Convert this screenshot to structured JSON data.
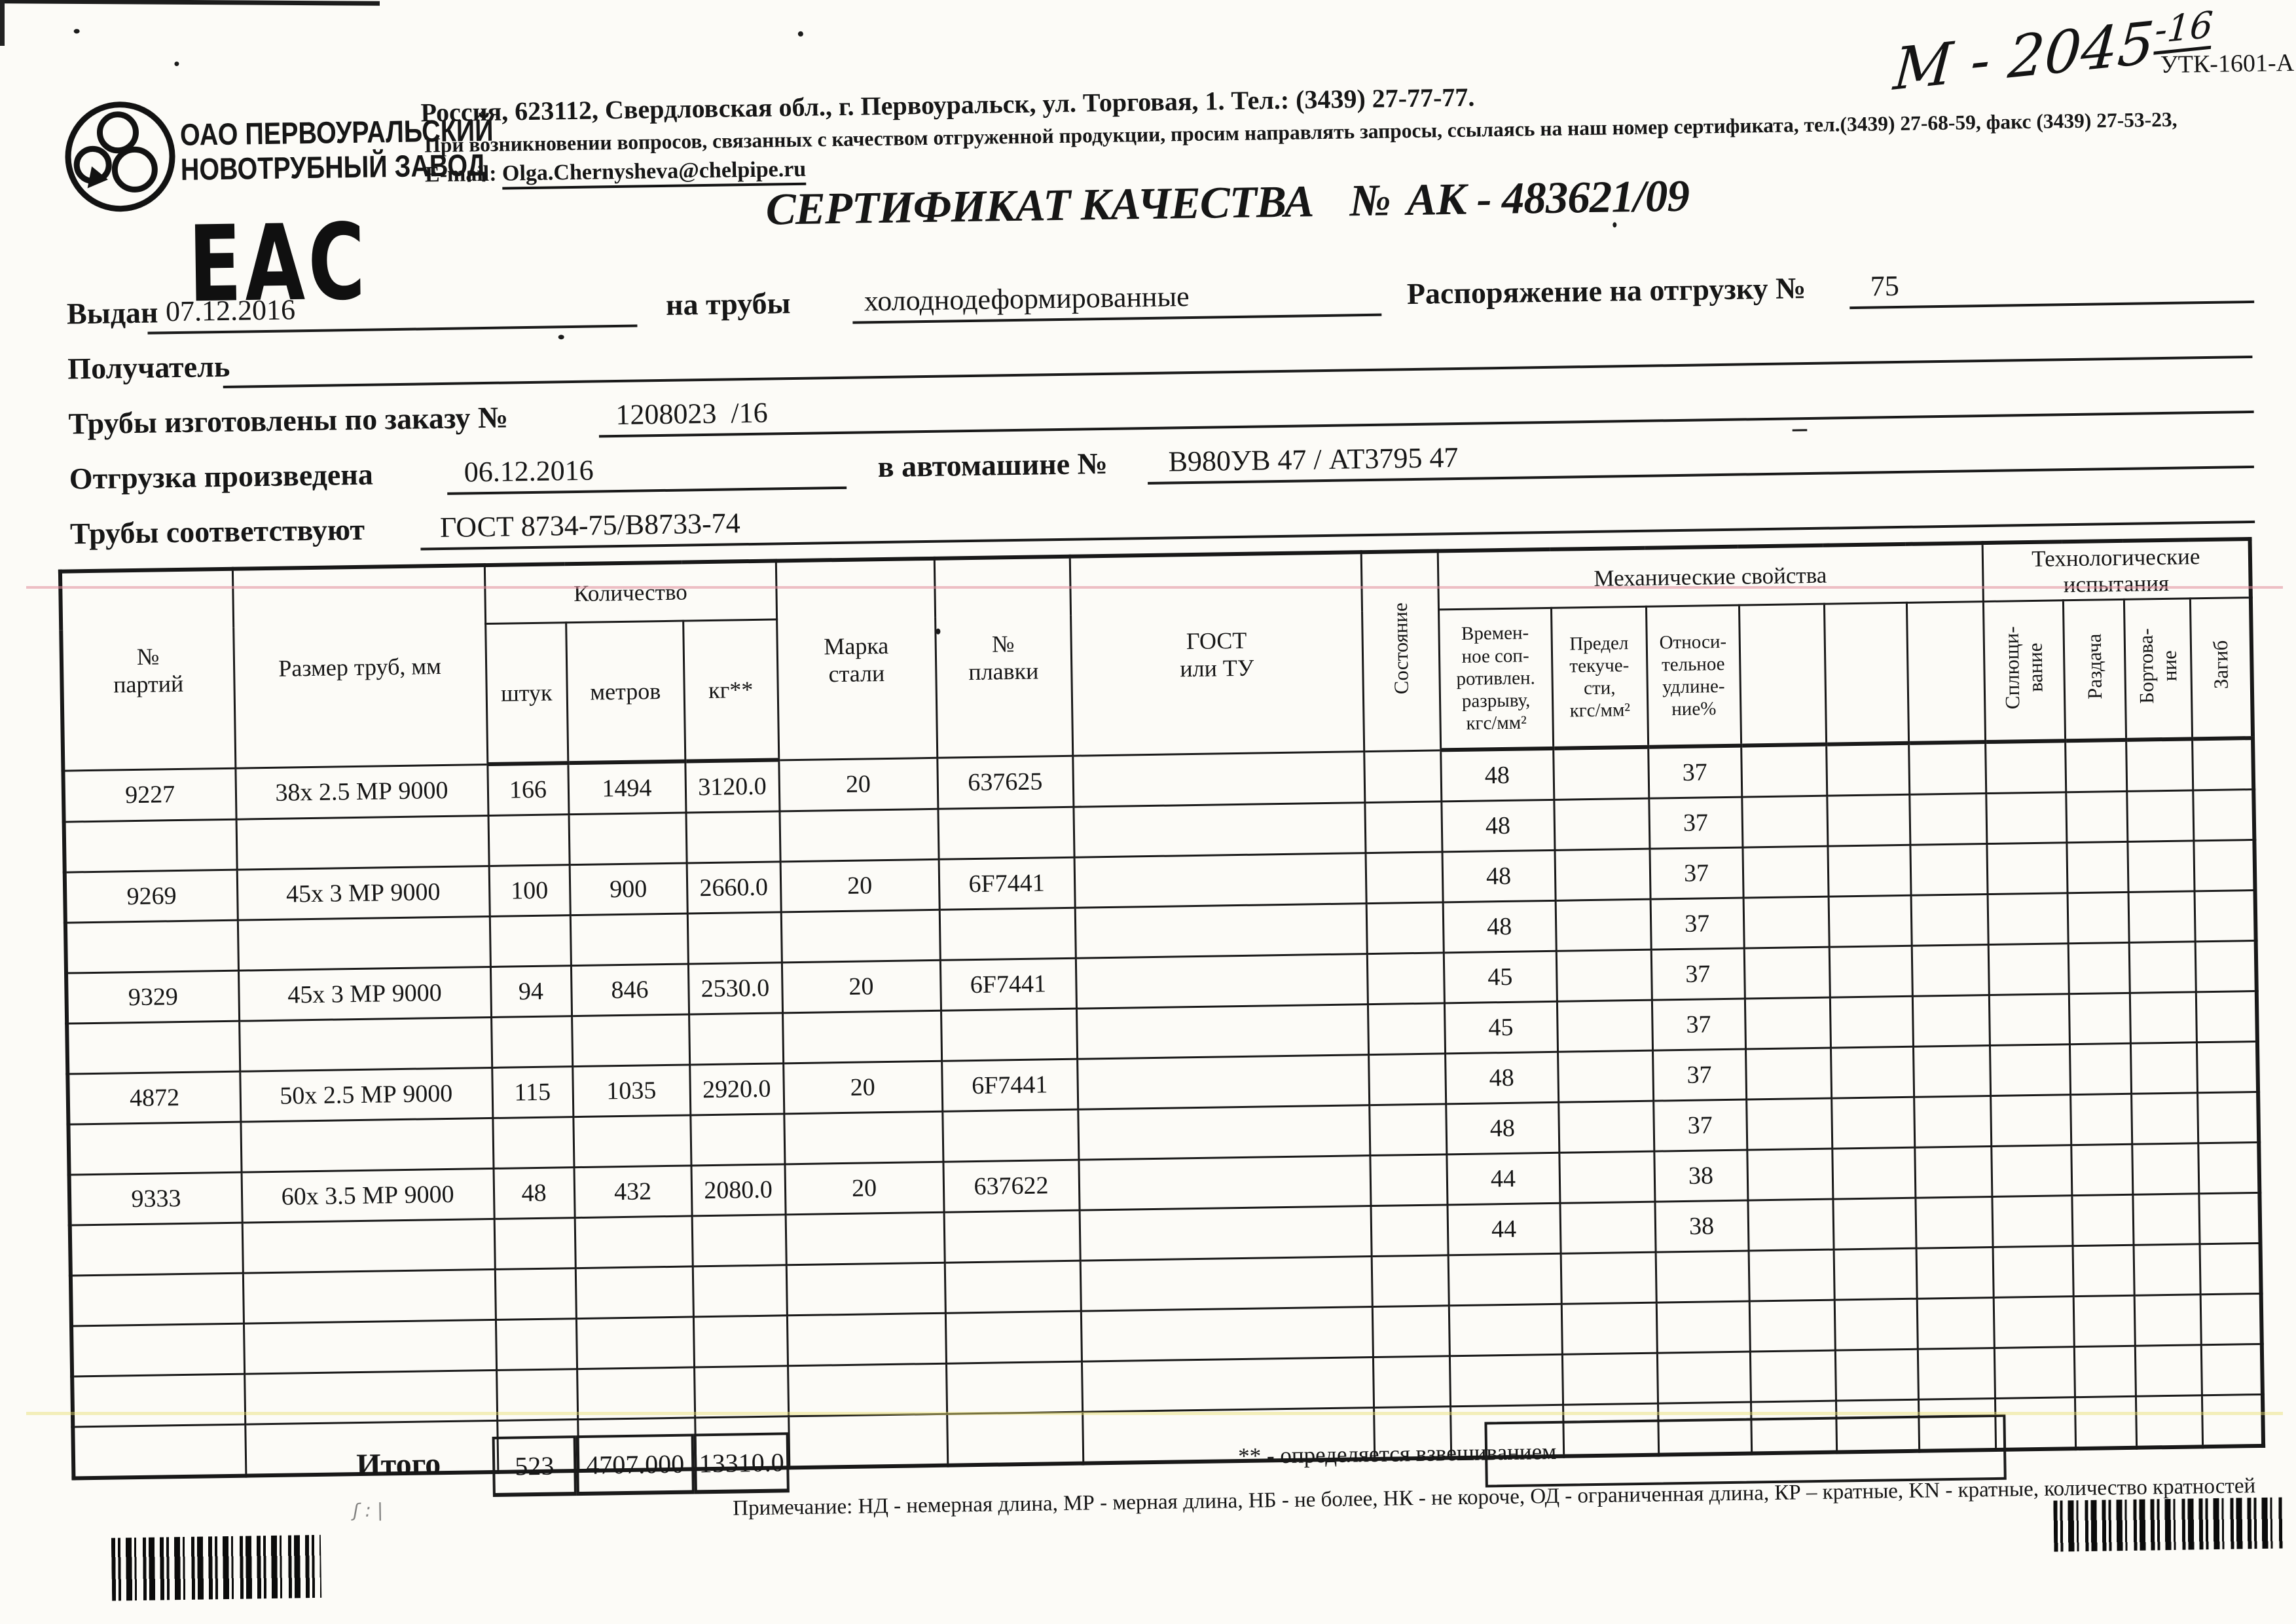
{
  "header": {
    "company_name": "ОАО ПЕРВОУРАЛЬСКИЙ\nНОВОТРУБНЫЙ  ЗАВОД",
    "eac_mark": "ЕАС",
    "address": "Россия, 623112, Свердловская обл., г. Первоуральск, ул. Торговая, 1. Тел.: (3439) 27-77-77.",
    "quality_note": "При возникновении вопросов, связанных с качеством отгруженной продукции, просим направлять запросы, ссылаясь на наш номер сертификата, тел.(3439) 27-68-59, факс (3439) 27-53-23,",
    "email_label": "E-mail:",
    "email": "Olga.Chernysheva@chelpipe.ru",
    "handwritten_main": "М - 2045",
    "handwritten_sup": "-16",
    "form_code": "УТК-1601-А"
  },
  "title": {
    "text": "СЕРТИФИКАТ КАЧЕСТВА",
    "number_label": "№",
    "number": "АК - 483621/09"
  },
  "form": {
    "issued_label": "Выдан",
    "issued_date": "07.12.2016",
    "pipes_label": "на трубы",
    "pipes_value": "холоднодеформированные",
    "shipping_order_label": "Распоряжение на отгрузку №",
    "shipping_order_value": "75",
    "receiver_label": "Получатель",
    "receiver_value": "",
    "order_label": "Трубы изготовлены по заказу №",
    "order_value": "1208023  /16",
    "shipped_label": "Отгрузка произведена",
    "shipped_date": "06.12.2016",
    "truck_label": "в автомашине №",
    "truck_value": "В980УВ 47 / АТ3795 47",
    "dash_mark": "–",
    "conform_label": "Трубы соответствуют",
    "conform_value": "ГОСТ 8734-75/В8733-74"
  },
  "table": {
    "headers": {
      "party": "№\nпартий",
      "size": "Размер труб, мм",
      "quantity_group": "Количество",
      "pieces": "штук",
      "meters": "метров",
      "kg": "кг**",
      "steel_grade": "Марка\nстали",
      "heat_no": "№\nплавки",
      "gost": "ГОСТ\nили ТУ",
      "condition": "Состояние",
      "mech_group": "Механические свойства",
      "tensile": "Времен-\nное соп-\nротивлен.\nразрыву,\nкгс/мм²",
      "yield_strength": "Предел\nтекуче-\nсти,\nкгс/мм²",
      "elongation": "Относи-\nтельное\nудлине-\nние%",
      "tech_group": "Технологические\nиспытания",
      "flattening": "Сплющи-\nвание",
      "expansion": "Раздача",
      "flanging": "Бортова-\nние",
      "bend": "Загиб"
    },
    "rows": [
      [
        "9227",
        "38х 2.5 МР 9000",
        "166",
        "1494",
        "3120.0",
        "20",
        "637625",
        "",
        "",
        "48",
        "",
        "37",
        "",
        "",
        "",
        "",
        "",
        "",
        ""
      ],
      [
        "",
        "",
        "",
        "",
        "",
        "",
        "",
        "",
        "",
        "48",
        "",
        "37",
        "",
        "",
        "",
        "",
        "",
        "",
        ""
      ],
      [
        "9269",
        "45х 3 МР 9000",
        "100",
        "900",
        "2660.0",
        "20",
        "6F7441",
        "",
        "",
        "48",
        "",
        "37",
        "",
        "",
        "",
        "",
        "",
        "",
        ""
      ],
      [
        "",
        "",
        "",
        "",
        "",
        "",
        "",
        "",
        "",
        "48",
        "",
        "37",
        "",
        "",
        "",
        "",
        "",
        "",
        ""
      ],
      [
        "9329",
        "45х 3 МР 9000",
        "94",
        "846",
        "2530.0",
        "20",
        "6F7441",
        "",
        "",
        "45",
        "",
        "37",
        "",
        "",
        "",
        "",
        "",
        "",
        ""
      ],
      [
        "",
        "",
        "",
        "",
        "",
        "",
        "",
        "",
        "",
        "45",
        "",
        "37",
        "",
        "",
        "",
        "",
        "",
        "",
        ""
      ],
      [
        "4872",
        "50х 2.5 МР 9000",
        "115",
        "1035",
        "2920.0",
        "20",
        "6F7441",
        "",
        "",
        "48",
        "",
        "37",
        "",
        "",
        "",
        "",
        "",
        "",
        ""
      ],
      [
        "",
        "",
        "",
        "",
        "",
        "",
        "",
        "",
        "",
        "48",
        "",
        "37",
        "",
        "",
        "",
        "",
        "",
        "",
        ""
      ],
      [
        "9333",
        "60х 3.5 МР 9000",
        "48",
        "432",
        "2080.0",
        "20",
        "637622",
        "",
        "",
        "44",
        "",
        "38",
        "",
        "",
        "",
        "",
        "",
        "",
        ""
      ],
      [
        "",
        "",
        "",
        "",
        "",
        "",
        "",
        "",
        "",
        "44",
        "",
        "38",
        "",
        "",
        "",
        "",
        "",
        "",
        ""
      ],
      [
        "",
        "",
        "",
        "",
        "",
        "",
        "",
        "",
        "",
        "",
        "",
        "",
        "",
        "",
        "",
        "",
        "",
        "",
        ""
      ],
      [
        "",
        "",
        "",
        "",
        "",
        "",
        "",
        "",
        "",
        "",
        "",
        "",
        "",
        "",
        "",
        "",
        "",
        "",
        ""
      ],
      [
        "",
        "",
        "",
        "",
        "",
        "",
        "",
        "",
        "",
        "",
        "",
        "",
        "",
        "",
        "",
        "",
        "",
        "",
        ""
      ],
      [
        "",
        "",
        "",
        "",
        "",
        "",
        "",
        "",
        "",
        "",
        "",
        "",
        "",
        "",
        "",
        "",
        "",
        "",
        ""
      ]
    ],
    "totals": {
      "label": "Итого",
      "pieces": "523",
      "meters": "4707.000",
      "kg": "13310.0"
    },
    "footnote": "** - определяется взвешиванием",
    "scribble": "ʃ : |"
  },
  "note": "Примечание: НД - немерная длина, МР - мерная длина, НБ - не более, НК - не короче, ОД - ограниченная длина, КР – кратные, KN - кратные, количество кратностей"
}
